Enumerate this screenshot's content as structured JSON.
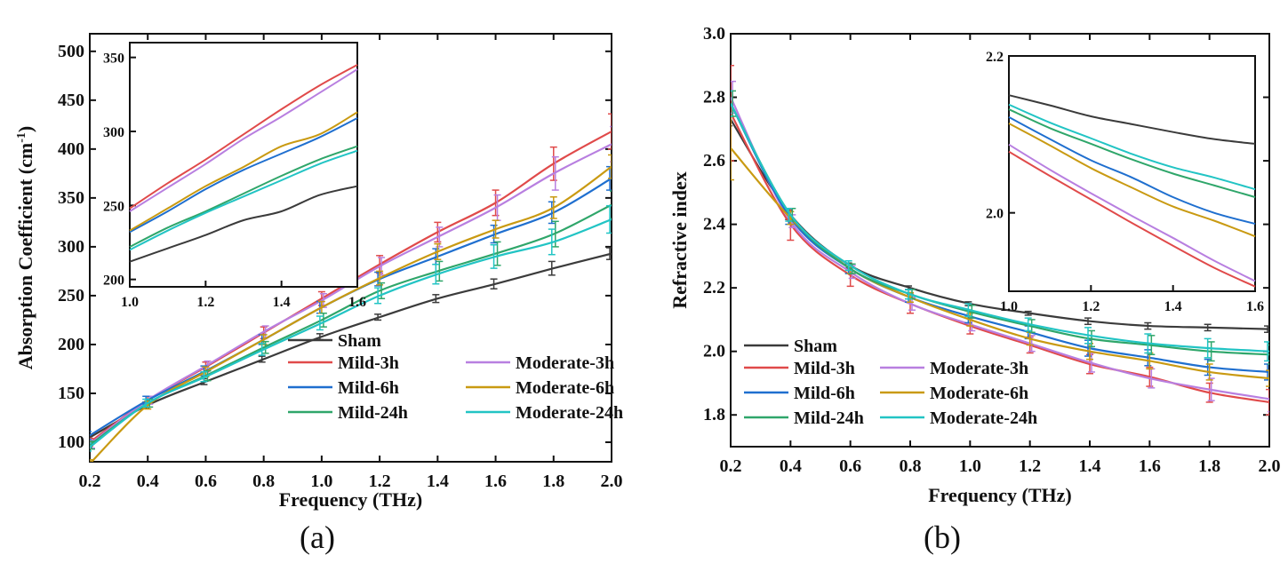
{
  "chart_data": [
    {
      "type": "line",
      "panel_label": "(a)",
      "xlabel": "Frequency (THz)",
      "ylabel": "Absorption Coefficient (cm",
      "ylabel_sup": "-1",
      "ylabel_end": ")",
      "xlim": [
        0.2,
        2.0
      ],
      "ylim": [
        80,
        518
      ],
      "xticks": [
        "0.2",
        "0.4",
        "0.6",
        "0.8",
        "1.0",
        "1.2",
        "1.4",
        "1.6",
        "1.8",
        "2.0"
      ],
      "yticks": [
        "100",
        "150",
        "200",
        "250",
        "300",
        "350",
        "400",
        "450",
        "500"
      ],
      "x": [
        0.2,
        0.4,
        0.6,
        0.8,
        1.0,
        1.2,
        1.4,
        1.6,
        1.8,
        2.0
      ],
      "series": [
        {
          "name": "Sham",
          "color": "#3b3b3b",
          "values": [
            105,
            138,
            162,
            185,
            208,
            228,
            247,
            262,
            278,
            293
          ],
          "err": [
            3,
            3,
            3,
            3,
            3,
            3,
            4,
            5,
            7,
            6
          ]
        },
        {
          "name": "Mild-3h",
          "color": "#e04a4a",
          "values": [
            100,
            143,
            177,
            212,
            247,
            282,
            315,
            345,
            385,
            418
          ],
          "err": [
            4,
            4,
            5,
            6,
            7,
            9,
            10,
            13,
            17,
            18
          ]
        },
        {
          "name": "Moderate-3h",
          "color": "#b87fe0",
          "values": [
            98,
            143,
            178,
            213,
            245,
            280,
            310,
            340,
            375,
            405
          ],
          "err": [
            4,
            4,
            5,
            6,
            7,
            9,
            10,
            13,
            17,
            18
          ]
        },
        {
          "name": "Mild-6h",
          "color": "#1f6fcf",
          "values": [
            107,
            143,
            173,
            205,
            238,
            267,
            290,
            313,
            335,
            370
          ],
          "err": [
            4,
            4,
            5,
            5,
            6,
            7,
            8,
            9,
            11,
            12
          ]
        },
        {
          "name": "Moderate-6h",
          "color": "#c99a12",
          "values": [
            78,
            138,
            172,
            205,
            238,
            268,
            295,
            318,
            340,
            382
          ],
          "err": [
            4,
            4,
            5,
            5,
            6,
            7,
            8,
            9,
            11,
            12
          ]
        },
        {
          "name": "Mild-24h",
          "color": "#2fa66a",
          "values": [
            97,
            140,
            168,
            197,
            225,
            255,
            275,
            293,
            313,
            343
          ],
          "err": [
            4,
            4,
            5,
            6,
            7,
            8,
            10,
            12,
            13,
            14
          ]
        },
        {
          "name": "Moderate-24h",
          "color": "#22c4c4",
          "values": [
            95,
            140,
            167,
            195,
            222,
            250,
            272,
            290,
            305,
            328
          ],
          "err": [
            4,
            4,
            5,
            6,
            7,
            8,
            10,
            12,
            13,
            14
          ]
        }
      ],
      "inset": {
        "xlim": [
          1.0,
          1.6
        ],
        "ylim": [
          195,
          360
        ],
        "xticks": [
          "1.0",
          "1.2",
          "1.4",
          "1.6"
        ],
        "yticks": [
          "200",
          "250",
          "300",
          "350"
        ],
        "x": [
          1.0,
          1.1,
          1.2,
          1.3,
          1.4,
          1.5,
          1.6
        ],
        "series": [
          {
            "name": "Sham",
            "values": [
              212,
              221,
              230,
              240,
              246,
              257,
              263
            ]
          },
          {
            "name": "Mild-3h",
            "values": [
              248,
              265,
              281,
              298,
              315,
              331,
              345
            ]
          },
          {
            "name": "Moderate-3h",
            "values": [
              246,
              262,
              278,
              295,
              310,
              326,
              342
            ]
          },
          {
            "name": "Mild-6h",
            "values": [
              232,
              246,
              261,
              274,
              285,
              296,
              309
            ]
          },
          {
            "name": "Moderate-6h",
            "values": [
              233,
              248,
              263,
              276,
              290,
              298,
              313
            ]
          },
          {
            "name": "Mild-24h",
            "values": [
              222,
              235,
              246,
              258,
              270,
              281,
              290
            ]
          },
          {
            "name": "Moderate-24h",
            "values": [
              220,
              233,
              245,
              256,
              267,
              278,
              287
            ]
          }
        ]
      }
    },
    {
      "type": "line",
      "panel_label": "(b)",
      "xlabel": "Frequency (THz)",
      "ylabel": "Refractive index",
      "xlim": [
        0.2,
        2.0
      ],
      "ylim": [
        1.7,
        3.0
      ],
      "xticks": [
        "0.2",
        "0.4",
        "0.6",
        "0.8",
        "1.0",
        "1.2",
        "1.4",
        "1.6",
        "1.8",
        "2.0"
      ],
      "yticks": [
        "1.8",
        "2.0",
        "2.2",
        "2.4",
        "2.6",
        "2.8",
        "3.0"
      ],
      "x": [
        0.2,
        0.4,
        0.6,
        0.8,
        1.0,
        1.2,
        1.4,
        1.6,
        1.8,
        2.0
      ],
      "series": [
        {
          "name": "Sham",
          "color": "#3b3b3b",
          "values": [
            2.73,
            2.43,
            2.27,
            2.2,
            2.15,
            2.12,
            2.095,
            2.08,
            2.075,
            2.07
          ],
          "err": [
            0.02,
            0.015,
            0.008,
            0.006,
            0.006,
            0.006,
            0.01,
            0.01,
            0.01,
            0.01
          ]
        },
        {
          "name": "Mild-3h",
          "color": "#e04a4a",
          "values": [
            2.75,
            2.4,
            2.24,
            2.15,
            2.08,
            2.02,
            1.96,
            1.92,
            1.87,
            1.84
          ],
          "err": [
            0.15,
            0.05,
            0.035,
            0.03,
            0.025,
            0.025,
            0.03,
            0.03,
            0.03,
            0.04
          ]
        },
        {
          "name": "Moderate-3h",
          "color": "#b87fe0",
          "values": [
            2.8,
            2.41,
            2.25,
            2.15,
            2.085,
            2.025,
            1.965,
            1.915,
            1.88,
            1.85
          ],
          "err": [
            0.05,
            0.02,
            0.02,
            0.02,
            0.02,
            0.025,
            0.03,
            0.03,
            0.035,
            0.04
          ]
        },
        {
          "name": "Mild-6h",
          "color": "#1f6fcf",
          "values": [
            2.78,
            2.42,
            2.26,
            2.17,
            2.11,
            2.06,
            2.01,
            1.98,
            1.95,
            1.935
          ],
          "err": [
            0.04,
            0.02,
            0.015,
            0.015,
            0.02,
            0.02,
            0.025,
            0.025,
            0.025,
            0.025
          ]
        },
        {
          "name": "Moderate-6h",
          "color": "#c99a12",
          "values": [
            2.64,
            2.42,
            2.26,
            2.17,
            2.1,
            2.04,
            2.0,
            1.97,
            1.935,
            1.915
          ],
          "err": [
            0.1,
            0.02,
            0.015,
            0.015,
            0.02,
            0.02,
            0.025,
            0.025,
            0.025,
            0.025
          ]
        },
        {
          "name": "Mild-24h",
          "color": "#2fa66a",
          "values": [
            2.78,
            2.43,
            2.26,
            2.18,
            2.125,
            2.08,
            2.04,
            2.02,
            2.0,
            1.99
          ],
          "err": [
            0.04,
            0.02,
            0.015,
            0.015,
            0.02,
            0.02,
            0.025,
            0.03,
            0.03,
            0.03
          ]
        },
        {
          "name": "Moderate-24h",
          "color": "#22c4c4",
          "values": [
            2.78,
            2.43,
            2.27,
            2.18,
            2.13,
            2.085,
            2.05,
            2.025,
            2.01,
            2.0
          ],
          "err": [
            0.04,
            0.02,
            0.015,
            0.015,
            0.02,
            0.02,
            0.025,
            0.03,
            0.03,
            0.03
          ]
        }
      ],
      "inset": {
        "xlim": [
          1.0,
          1.6
        ],
        "ylim": [
          1.9,
          2.2
        ],
        "xticks": [
          "1.0",
          "1.2",
          "1.4",
          "1.6"
        ],
        "yticks": [
          "2.0",
          "2.2"
        ],
        "x": [
          1.0,
          1.1,
          1.2,
          1.3,
          1.4,
          1.5,
          1.6
        ],
        "series": [
          {
            "name": "Sham",
            "values": [
              2.15,
              2.137,
              2.123,
              2.113,
              2.103,
              2.094,
              2.088
            ]
          },
          {
            "name": "Mild-3h",
            "values": [
              2.078,
              2.047,
              2.017,
              1.987,
              1.958,
              1.93,
              1.906
            ]
          },
          {
            "name": "Moderate-3h",
            "values": [
              2.087,
              2.055,
              2.025,
              1.996,
              1.968,
              1.939,
              1.913
            ]
          },
          {
            "name": "Mild-6h",
            "values": [
              2.122,
              2.094,
              2.067,
              2.045,
              2.02,
              2.0,
              1.986
            ]
          },
          {
            "name": "Moderate-6h",
            "values": [
              2.114,
              2.086,
              2.057,
              2.032,
              2.008,
              1.99,
              1.97
            ]
          },
          {
            "name": "Mild-24h",
            "values": [
              2.132,
              2.108,
              2.088,
              2.068,
              2.05,
              2.035,
              2.02
            ]
          },
          {
            "name": "Moderate-24h",
            "values": [
              2.138,
              2.115,
              2.095,
              2.075,
              2.058,
              2.045,
              2.03
            ]
          }
        ]
      }
    }
  ]
}
